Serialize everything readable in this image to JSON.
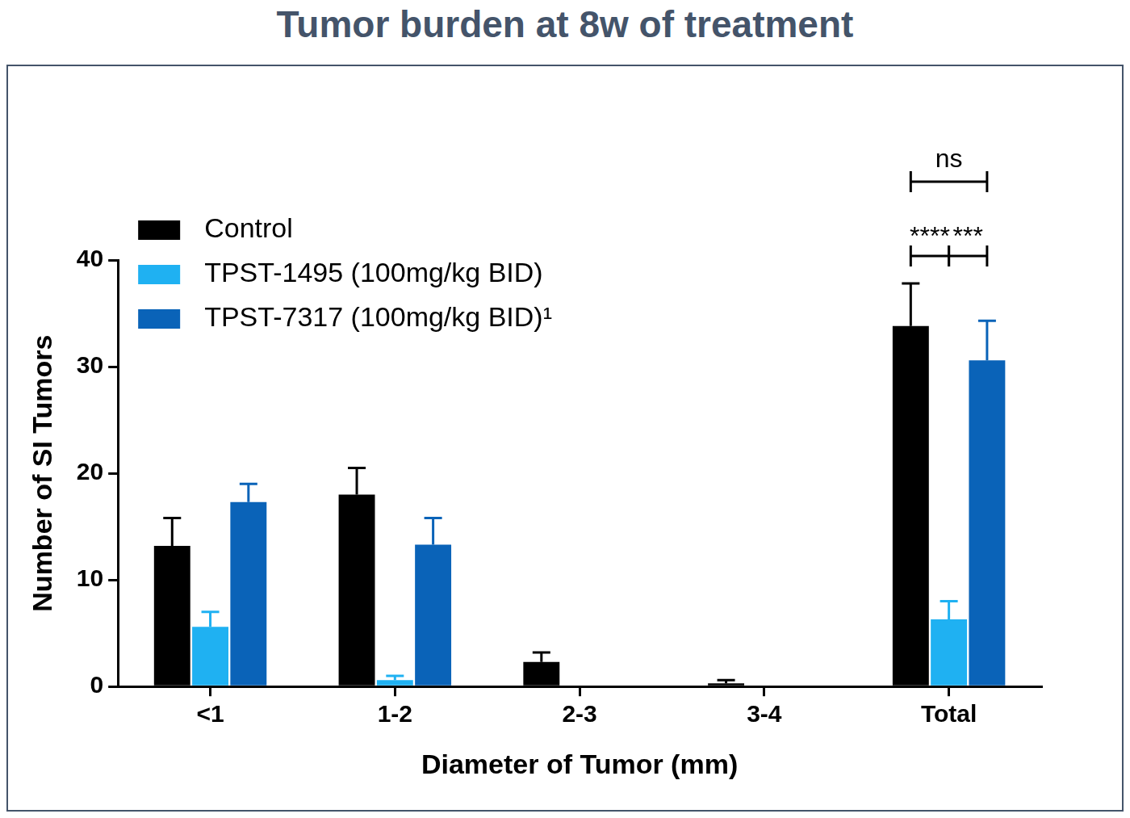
{
  "chart_data": {
    "type": "bar",
    "title": "Tumor burden at 8w of treatment",
    "x_label": "Diameter of Tumor (mm)",
    "y_label": "Number of SI Tumors",
    "categories": [
      "<1",
      "1-2",
      "2-3",
      "3-4",
      "Total"
    ],
    "series": [
      {
        "name": "Control",
        "color": "#000000",
        "values": [
          13.2,
          18.0,
          2.3,
          0.3,
          33.8
        ],
        "errors": [
          2.6,
          2.5,
          0.9,
          0.3,
          4.0
        ]
      },
      {
        "name": "TPST-1495 (100mg/kg BID)",
        "color": "#1fb1f2",
        "values": [
          5.6,
          0.6,
          0,
          0,
          6.3
        ],
        "errors": [
          1.4,
          0.4,
          0,
          0,
          1.7
        ]
      },
      {
        "name": "TPST-7317 (100mg/kg BID)¹",
        "color": "#0a63b8",
        "values": [
          17.3,
          13.3,
          0,
          0,
          30.6
        ],
        "errors": [
          1.7,
          2.5,
          0,
          0,
          3.7
        ]
      }
    ],
    "ylim": [
      0,
      40
    ],
    "yticks": [
      0,
      10,
      20,
      30,
      40
    ],
    "grid": false,
    "legend": "upper left",
    "annotations": [
      {
        "text": "****",
        "category": "Total",
        "from": "Control",
        "to": "TPST-1495 (100mg/kg BID)"
      },
      {
        "text": "***",
        "category": "Total",
        "from": "TPST-1495 (100mg/kg BID)",
        "to": "TPST-7317 (100mg/kg BID)¹"
      },
      {
        "text": "ns",
        "category": "Total",
        "from": "Control",
        "to": "TPST-7317 (100mg/kg BID)¹"
      }
    ]
  }
}
